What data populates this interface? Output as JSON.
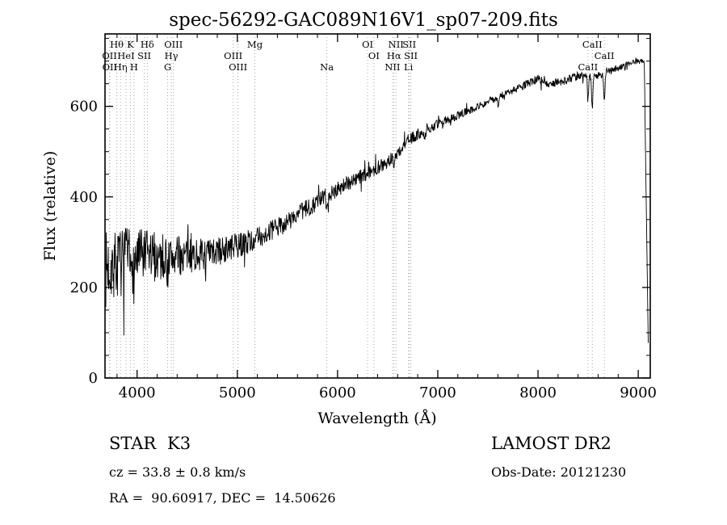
{
  "footer": {
    "class": "STAR",
    "subclass": "K3",
    "survey": "LAMOST DR2",
    "cz": "cz = 33.8 ± 0.8 km/s",
    "obs_date": "Obs-Date: 20121230",
    "coords": "RA =  90.60917, DEC =  14.50626"
  },
  "chart_data": {
    "type": "line",
    "title": "spec-56292-GAC089N16V1_sp07-209.fits",
    "xlabel": "Wavelength (Å)",
    "ylabel": "Flux (relative)",
    "xlim": [
      3680,
      9120
    ],
    "ylim": [
      0,
      760
    ],
    "xticks": [
      4000,
      5000,
      6000,
      7000,
      8000,
      9000
    ],
    "yticks": [
      0,
      200,
      400,
      600
    ],
    "x_minor_step": 200,
    "y_minor_step": 50,
    "grid": "spectral-line-markers-only",
    "legend": "none",
    "line_color": "#000000",
    "marker_line_color": "#a8a8a8",
    "noise_seed": 7,
    "continuum": [
      [
        3690,
        240
      ],
      [
        3750,
        255
      ],
      [
        3800,
        250
      ],
      [
        3900,
        260
      ],
      [
        4000,
        265
      ],
      [
        4150,
        270
      ],
      [
        4300,
        265
      ],
      [
        4500,
        272
      ],
      [
        4700,
        272
      ],
      [
        4900,
        285
      ],
      [
        5100,
        300
      ],
      [
        5300,
        320
      ],
      [
        5500,
        345
      ],
      [
        5700,
        375
      ],
      [
        5900,
        405
      ],
      [
        6100,
        430
      ],
      [
        6300,
        452
      ],
      [
        6500,
        478
      ],
      [
        6600,
        495
      ],
      [
        6700,
        525
      ],
      [
        6900,
        550
      ],
      [
        7100,
        570
      ],
      [
        7300,
        590
      ],
      [
        7500,
        610
      ],
      [
        7700,
        630
      ],
      [
        7900,
        650
      ],
      [
        8000,
        662
      ],
      [
        8100,
        650
      ],
      [
        8250,
        655
      ],
      [
        8400,
        668
      ],
      [
        8600,
        668
      ],
      [
        8800,
        685
      ],
      [
        9000,
        700
      ],
      [
        9060,
        700
      ]
    ],
    "noise_amplitude": [
      [
        3690,
        85
      ],
      [
        3800,
        75
      ],
      [
        3950,
        70
      ],
      [
        4100,
        60
      ],
      [
        4300,
        50
      ],
      [
        4500,
        40
      ],
      [
        4700,
        35
      ],
      [
        5000,
        28
      ],
      [
        5400,
        22
      ],
      [
        5800,
        20
      ],
      [
        6200,
        16
      ],
      [
        6600,
        14
      ],
      [
        7000,
        10
      ],
      [
        7500,
        8
      ],
      [
        8000,
        9
      ],
      [
        8500,
        10
      ],
      [
        9000,
        6
      ]
    ],
    "absorption_dips": [
      {
        "center": 3934,
        "depth": 40,
        "width": 8
      },
      {
        "center": 3969,
        "depth": 40,
        "width": 8
      },
      {
        "center": 4305,
        "depth": 25,
        "width": 10
      },
      {
        "center": 5175,
        "depth": 20,
        "width": 12
      },
      {
        "center": 5893,
        "depth": 30,
        "width": 10
      },
      {
        "center": 6563,
        "depth": 25,
        "width": 8
      },
      {
        "center": 6870,
        "depth": 15,
        "width": 10
      },
      {
        "center": 7605,
        "depth": 20,
        "width": 12
      },
      {
        "center": 8498,
        "depth": 55,
        "width": 8
      },
      {
        "center": 8542,
        "depth": 70,
        "width": 9
      },
      {
        "center": 8662,
        "depth": 60,
        "width": 9
      }
    ],
    "red_cutoff": {
      "start": 9060,
      "end": 9105
    },
    "spectral_lines": [
      {
        "wavelength": 3725,
        "label": "OII",
        "row": 2
      },
      {
        "wavelength": 3727,
        "label": "OII",
        "row": 3
      },
      {
        "wavelength": 3798,
        "label": "Hθ",
        "row": 1
      },
      {
        "wavelength": 3835,
        "label": "Hη",
        "row": 3
      },
      {
        "wavelength": 3889,
        "label": "HeI",
        "row": 2
      },
      {
        "wavelength": 3934,
        "label": "K",
        "row": 1
      },
      {
        "wavelength": 3969,
        "label": "H",
        "row": 3
      },
      {
        "wavelength": 4072,
        "label": "SII",
        "row": 2
      },
      {
        "wavelength": 4102,
        "label": "Hδ",
        "row": 1
      },
      {
        "wavelength": 4305,
        "label": "G",
        "row": 3
      },
      {
        "wavelength": 4341,
        "label": "Hγ",
        "row": 2
      },
      {
        "wavelength": 4363,
        "label": "OIII",
        "row": 1
      },
      {
        "wavelength": 4959,
        "label": "OIII",
        "row": 2
      },
      {
        "wavelength": 5007,
        "label": "OIII",
        "row": 3
      },
      {
        "wavelength": 5175,
        "label": "Mg",
        "row": 1
      },
      {
        "wavelength": 5893,
        "label": "Na",
        "row": 3
      },
      {
        "wavelength": 6300,
        "label": "OI",
        "row": 1
      },
      {
        "wavelength": 6363,
        "label": "OI",
        "row": 2
      },
      {
        "wavelength": 6548,
        "label": "NII",
        "row": 3
      },
      {
        "wavelength": 6563,
        "label": "Hα",
        "row": 2
      },
      {
        "wavelength": 6583,
        "label": "NII",
        "row": 1
      },
      {
        "wavelength": 6708,
        "label": "Li",
        "row": 3
      },
      {
        "wavelength": 6716,
        "label": "SII",
        "row": 1
      },
      {
        "wavelength": 6731,
        "label": "SII",
        "row": 2
      },
      {
        "wavelength": 8498,
        "label": "CaII",
        "row": 3
      },
      {
        "wavelength": 8542,
        "label": "CaII",
        "row": 1
      },
      {
        "wavelength": 8662,
        "label": "CaII",
        "row": 2
      }
    ]
  }
}
